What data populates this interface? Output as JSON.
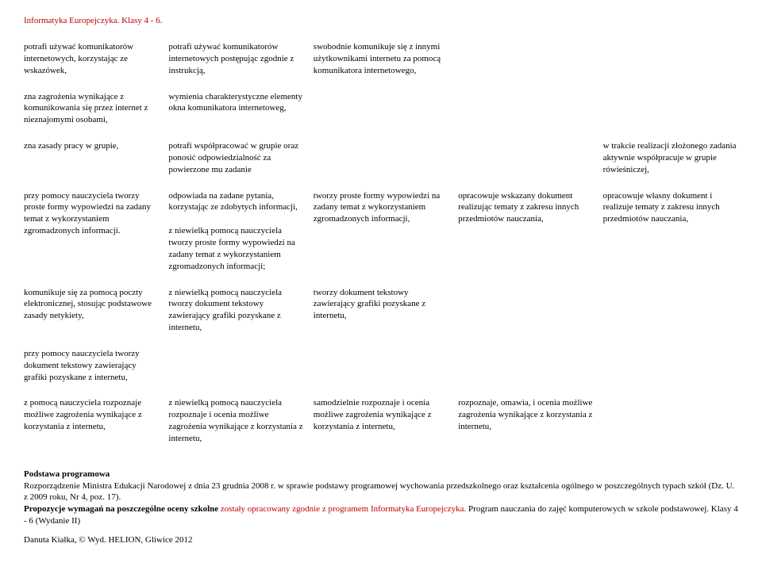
{
  "header": "Informatyka Europejczyka. Klasy 4 - 6.",
  "rows": [
    {
      "c1": "potrafi używać komunikatorów internetowych, korzystając ze wskazówek,",
      "c2": "potrafi używać komunikatorów internetowych postępując zgodnie z instrukcją,",
      "c3": "swobodnie komunikuje się z innymi użytkownikami internetu za pomocą komunikatora internetowego,",
      "c4": "",
      "c5": ""
    },
    {
      "c1": "zna zagrożenia wynikające z komunikowania się przez internet z nieznajomymi osobami,",
      "c2": "wymienia charakterystyczne elementy okna komunikatora internetoweg,",
      "c3": "",
      "c4": "",
      "c5": ""
    },
    {
      "c1": "zna zasady pracy w grupie,",
      "c2": "potrafi współpracować w grupie oraz ponosić odpowiedzialność za powierzone mu zadanie",
      "c3": "",
      "c4": "",
      "c5": "w trakcie realizacji złożonego zadania aktywnie współpracuje w grupie rówieśniczej,"
    },
    {
      "c1": "przy pomocy nauczyciela tworzy proste formy wypowiedzi na zadany temat z wykorzystaniem zgromadzonych informacji.",
      "c2": "odpowiada na zadane pytania, korzystając ze zdobytych informacji,\n\nz niewielką pomocą nauczyciela tworzy proste formy wypowiedzi na zadany temat z wykorzystaniem zgromadzonych informacji;",
      "c3": "tworzy proste formy wypowiedzi na zadany temat z wykorzystaniem zgromadzonych informacji,",
      "c4": "opracowuje wskazany dokument realizując tematy z zakresu innych przedmiotów nauczania,",
      "c5": "opracowuje własny dokument i realizuje tematy z zakresu innych przedmiotów nauczania,"
    },
    {
      "c1": "komunikuje się  za pomocą poczty elektronicznej, stosując podstawowe zasady netykiety,",
      "c2": "z niewielką pomocą nauczyciela tworzy dokument tekstowy zawierający grafiki pozyskane z internetu,",
      "c3": "tworzy dokument tekstowy zawierający grafiki pozyskane z internetu,",
      "c4": "",
      "c5": ""
    },
    {
      "c1": "przy pomocy nauczyciela tworzy dokument tekstowy zawierający grafiki pozyskane z internetu,",
      "c2": "",
      "c3": "",
      "c4": "",
      "c5": ""
    },
    {
      "c1": "z pomocą nauczyciela rozpoznaje możliwe zagrożenia wynikające z korzystania z internetu,",
      "c2": "z niewielką pomocą nauczyciela rozpoznaje i ocenia możliwe zagrożenia wynikające z korzystania z internetu,",
      "c3": "samodzielnie rozpoznaje i ocenia możliwe zagrożenia wynikające z korzystania z internetu,",
      "c4": "rozpoznaje, omawia, i ocenia możliwe zagrożenia wynikające z korzystania z internetu,",
      "c5": ""
    }
  ],
  "footnote": {
    "line1_bold": "Podstawa programowa",
    "line2": "Rozporządzenie Ministra Edukacji Narodowej z dnia 23 grudnia 2008 r. w sprawie podstawy programowej wychowania przedszkolnego oraz kształcenia ogólnego w poszczególnych typach szkół (Dz. U. z 2009 roku, Nr 4, poz. 17).",
    "line3_bold": "Propozycje wymagań na poszczególne oceny szkolne ",
    "line3_red": "zostały opracowany zgodnie z programem Informatyka Europejczyka. ",
    "line3_rest": "Program nauczania do zajęć komputerowych w szkole podstawowej. Klasy 4 - 6 (Wydanie II)",
    "lastline": "Danuta Kiałka, © Wyd. HELION, Gliwice 2012"
  }
}
